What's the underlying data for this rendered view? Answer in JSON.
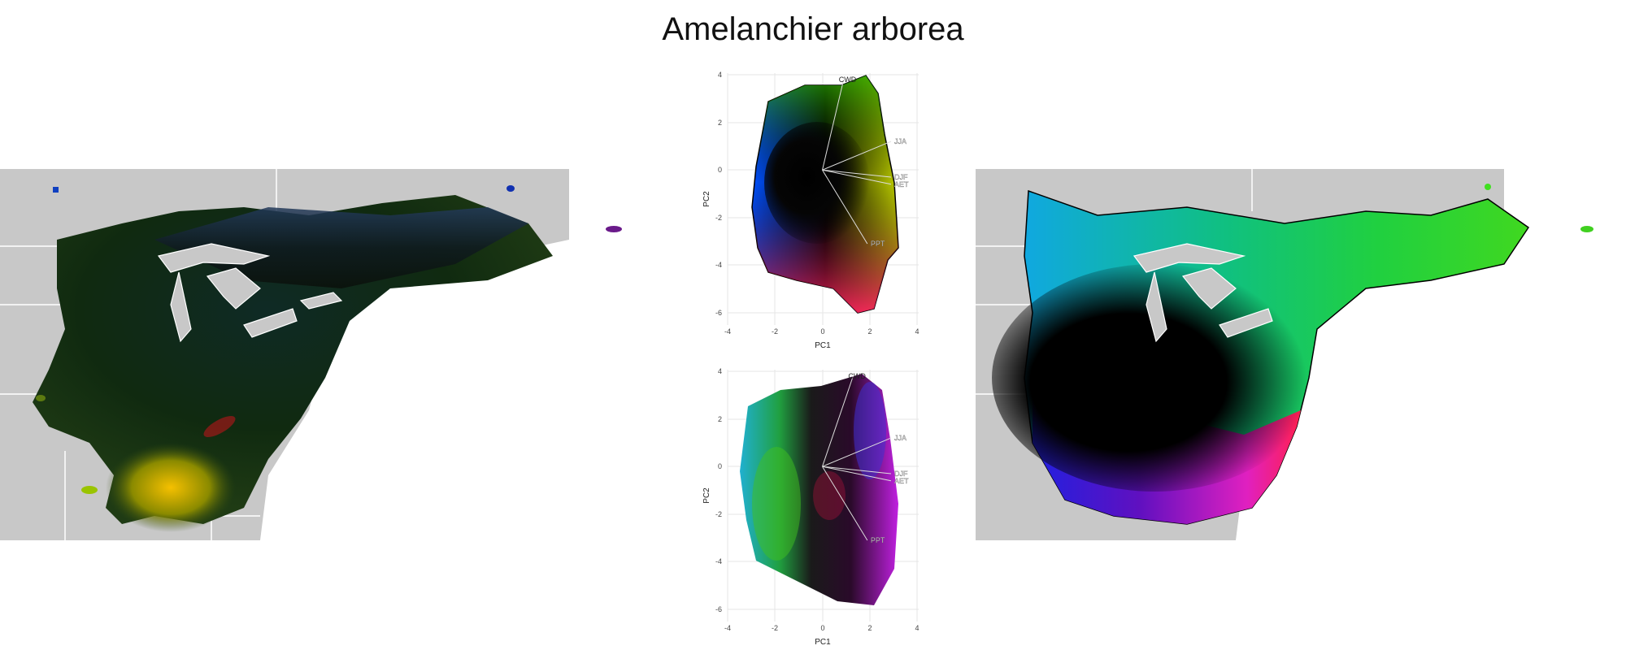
{
  "title": "Amelanchier arborea",
  "colors": {
    "land": "#c8c8c8",
    "border": "#ffffff",
    "range_dark": "#050505",
    "plot_bg": "#ffffff",
    "grid": "#e6e6e6",
    "loading_line": "#dddddd",
    "hull_outline": "#000000"
  },
  "chart_data": [
    {
      "type": "map",
      "panel": "left-map",
      "description_visible": "species range colored by climate PCA"
    },
    {
      "type": "scatter",
      "panel": "pca-top",
      "xlabel": "PC1",
      "ylabel": "PC2",
      "xlim": [
        -4.5,
        4.5
      ],
      "ylim": [
        -6.5,
        4.5
      ],
      "x_ticks": [
        -4,
        -2,
        0,
        2,
        4
      ],
      "y_ticks": [
        4,
        2,
        0,
        -2,
        -4,
        -6
      ],
      "grid": true,
      "loadings": [
        {
          "label": "CWD",
          "x": 0.9,
          "y": 3.8
        },
        {
          "label": "JJA",
          "x": 2.9,
          "y": 1.2
        },
        {
          "label": "DJF",
          "x": 2.9,
          "y": -0.3
        },
        {
          "label": "AET",
          "x": 2.9,
          "y": -0.6
        },
        {
          "label": "PPT",
          "x": 1.9,
          "y": -3.1
        }
      ]
    },
    {
      "type": "scatter",
      "panel": "pca-bottom",
      "xlabel": "PC1",
      "ylabel": "PC2",
      "xlim": [
        -4.5,
        4.5
      ],
      "ylim": [
        -6.5,
        4.5
      ],
      "x_ticks": [
        -4,
        -2,
        0,
        2,
        4
      ],
      "y_ticks": [
        4,
        2,
        0,
        -2,
        -4,
        -6
      ],
      "grid": true,
      "loadings": [
        {
          "label": "CWD",
          "x": 1.3,
          "y": 3.8
        },
        {
          "label": "JJA",
          "x": 2.9,
          "y": 1.2
        },
        {
          "label": "DJF",
          "x": 2.9,
          "y": -0.3
        },
        {
          "label": "AET",
          "x": 2.9,
          "y": -0.6
        },
        {
          "label": "PPT",
          "x": 1.9,
          "y": -3.1
        }
      ]
    },
    {
      "type": "map",
      "panel": "right-map",
      "description_visible": "species range colored by PCA hull"
    }
  ]
}
